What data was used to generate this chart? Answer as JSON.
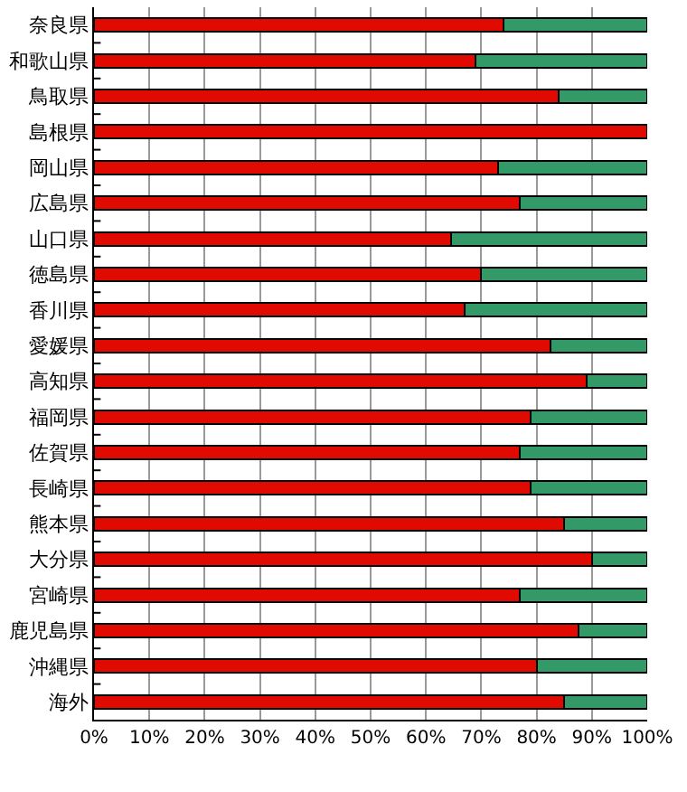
{
  "chart_data": {
    "type": "bar",
    "orientation": "horizontal",
    "stacked": true,
    "categories": [
      "奈良県",
      "和歌山県",
      "鳥取県",
      "島根県",
      "岡山県",
      "広島県",
      "山口県",
      "徳島県",
      "香川県",
      "愛媛県",
      "高知県",
      "福岡県",
      "佐賀県",
      "長崎県",
      "熊本県",
      "大分県",
      "宮崎県",
      "鹿児島県",
      "沖縄県",
      "海外"
    ],
    "series": [
      {
        "color": "#e00a00",
        "values": [
          74,
          69,
          84,
          100,
          73,
          77,
          64.5,
          70,
          67,
          82.5,
          89,
          79,
          77,
          79,
          85,
          90,
          77,
          87.5,
          80,
          85
        ]
      },
      {
        "color": "#339966",
        "values": [
          26,
          31,
          16,
          null,
          27,
          23,
          35.5,
          30,
          33,
          17.5,
          11,
          21,
          23,
          21,
          15,
          10,
          23,
          12.5,
          20,
          15
        ]
      }
    ],
    "xlim": [
      0,
      100
    ],
    "xticks": [
      {
        "value": 0,
        "label": "0%"
      },
      {
        "value": 10,
        "label": "10%"
      },
      {
        "value": 20,
        "label": "20%"
      },
      {
        "value": 30,
        "label": "30%"
      },
      {
        "value": 40,
        "label": "40%"
      },
      {
        "value": 50,
        "label": "50%"
      },
      {
        "value": 60,
        "label": "60%"
      },
      {
        "value": 70,
        "label": "70%"
      },
      {
        "value": 80,
        "label": "80%"
      },
      {
        "value": 90,
        "label": "90%"
      },
      {
        "value": 100,
        "label": "100%"
      }
    ],
    "grid": "x"
  }
}
